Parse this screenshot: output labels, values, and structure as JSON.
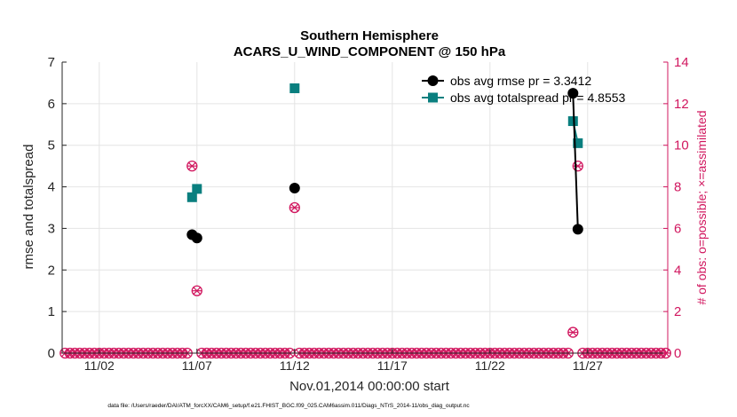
{
  "chart_data": {
    "type": "line",
    "title_line1": "Southern Hemisphere",
    "title_line2": "ACARS_U_WIND_COMPONENT @ 150 hPa",
    "xlabel": "Nov.01,2014 00:00:00 start",
    "ylabel_left": "rmse and totalspread",
    "ylabel_right": "# of obs: o=possible; ×=assimilated",
    "footer": "data file: /Users/raeder/DAI/ATM_forcXX/CAM6_setup/f.e21.FHIST_BGC.f09_025.CAM6assim.011/Diags_NTrS_2014-11/obs_diag_output.nc",
    "xlim": [
      0.1,
      31.1
    ],
    "ylim_left": [
      0,
      7
    ],
    "ylim_right": [
      0,
      14
    ],
    "x_ticks": [
      {
        "v": 2,
        "label": "11/02"
      },
      {
        "v": 7,
        "label": "11/07"
      },
      {
        "v": 12,
        "label": "11/12"
      },
      {
        "v": 17,
        "label": "11/17"
      },
      {
        "v": 22,
        "label": "11/22"
      },
      {
        "v": 27,
        "label": "11/27"
      }
    ],
    "y_ticks_left": [
      0,
      1,
      2,
      3,
      4,
      5,
      6,
      7
    ],
    "y_ticks_right": [
      0,
      2,
      4,
      6,
      8,
      10,
      12,
      14
    ],
    "colors": {
      "rmse": "#000000",
      "spread": "#0a7f7f",
      "obs": "#d1175f",
      "axis": "#262626",
      "grid": "#e4e4e4"
    },
    "legend": [
      {
        "key": "rmse",
        "label": "obs avg rmse   pr = 3.3412"
      },
      {
        "key": "spread",
        "label": "obs avg totalspread   pr = 4.8553"
      }
    ],
    "legend_position": "top-right",
    "series": [
      {
        "name": "obs avg rmse",
        "axis": "left",
        "segments": [
          [
            {
              "x": 6.75,
              "y": 2.85
            },
            {
              "x": 7.0,
              "y": 2.77
            }
          ],
          [
            {
              "x": 12.0,
              "y": 3.97
            }
          ],
          [
            {
              "x": 26.25,
              "y": 6.25
            },
            {
              "x": 26.5,
              "y": 2.98
            }
          ]
        ]
      },
      {
        "name": "obs avg totalspread",
        "axis": "left",
        "segments": [
          [
            {
              "x": 6.75,
              "y": 3.75
            },
            {
              "x": 7.0,
              "y": 3.95
            }
          ],
          [
            {
              "x": 12.0,
              "y": 6.37
            }
          ],
          [
            {
              "x": 26.25,
              "y": 5.58
            },
            {
              "x": 26.5,
              "y": 5.05
            }
          ]
        ]
      }
    ],
    "obs_nonzero": [
      {
        "x": 6.75,
        "possible": 9,
        "assimilated": 9
      },
      {
        "x": 7.0,
        "possible": 3,
        "assimilated": 3
      },
      {
        "x": 12.0,
        "possible": 7,
        "assimilated": 7
      },
      {
        "x": 26.25,
        "possible": 1,
        "assimilated": 1
      },
      {
        "x": 26.5,
        "possible": 9,
        "assimilated": 9
      }
    ],
    "obs_zero_x_start": 0.25,
    "obs_zero_x_end": 31.0,
    "obs_zero_step": 0.25
  }
}
